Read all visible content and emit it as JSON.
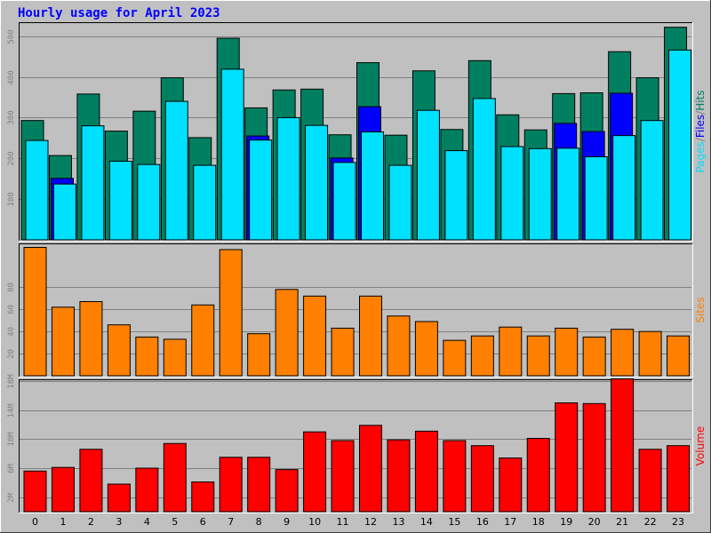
{
  "title": "Hourly usage for April 2023",
  "colors": {
    "background": "#c0c0c0",
    "grid": "#808080",
    "hits": "#008060",
    "files": "#0000ff",
    "pages": "#00e0ff",
    "sites": "#ff8000",
    "volume": "#ff0000",
    "title": "#0000ff"
  },
  "chart_data": [
    {
      "type": "bar",
      "panel": "hits-files-pages",
      "ylabel_parts": [
        {
          "text": "Pages",
          "color_key": "pages"
        },
        {
          "text": "/",
          "color_key": "grid"
        },
        {
          "text": "Files",
          "color_key": "files"
        },
        {
          "text": "/",
          "color_key": "grid"
        },
        {
          "text": "Hits",
          "color_key": "hits"
        }
      ],
      "ylim": [
        0,
        530
      ],
      "yticks": [
        100,
        200,
        300,
        400,
        500
      ],
      "ytick_labels": [
        "100",
        "200",
        "300",
        "400",
        "500"
      ],
      "categories": [
        "0",
        "1",
        "2",
        "3",
        "4",
        "5",
        "6",
        "7",
        "8",
        "9",
        "10",
        "11",
        "12",
        "13",
        "14",
        "15",
        "16",
        "17",
        "18",
        "19",
        "20",
        "21",
        "22",
        "23"
      ],
      "series": [
        {
          "name": "Hits",
          "color_key": "hits",
          "values": [
            293,
            207,
            358,
            267,
            316,
            398,
            251,
            495,
            324,
            368,
            370,
            258,
            435,
            257,
            415,
            271,
            440,
            307,
            270,
            359,
            361,
            462,
            398,
            522
          ]
        },
        {
          "name": "Files",
          "color_key": "files",
          "values": [
            0,
            151,
            0,
            0,
            0,
            0,
            0,
            0,
            255,
            0,
            0,
            201,
            327,
            0,
            0,
            0,
            0,
            0,
            0,
            286,
            266,
            360,
            0,
            0
          ]
        },
        {
          "name": "Pages",
          "color_key": "pages",
          "values": [
            244,
            137,
            280,
            193,
            185,
            340,
            183,
            419,
            245,
            300,
            281,
            190,
            265,
            183,
            318,
            219,
            347,
            229,
            224,
            225,
            204,
            256,
            293,
            466
          ]
        }
      ]
    },
    {
      "type": "bar",
      "panel": "sites",
      "ylabel": "Sites",
      "ylim": [
        0,
        118
      ],
      "yticks": [
        20,
        40,
        60,
        80
      ],
      "ytick_labels": [
        "20",
        "40",
        "60",
        "80"
      ],
      "categories": [
        "0",
        "1",
        "2",
        "3",
        "4",
        "5",
        "6",
        "7",
        "8",
        "9",
        "10",
        "11",
        "12",
        "13",
        "14",
        "15",
        "16",
        "17",
        "18",
        "19",
        "20",
        "21",
        "22",
        "23"
      ],
      "series": [
        {
          "name": "Sites",
          "color_key": "sites",
          "values": [
            116,
            62,
            67,
            46,
            35,
            33,
            64,
            114,
            38,
            78,
            72,
            43,
            72,
            54,
            49,
            32,
            36,
            44,
            36,
            43,
            35,
            42,
            40,
            36
          ]
        }
      ]
    },
    {
      "type": "bar",
      "panel": "volume",
      "ylabel": "Volume",
      "ylim": [
        0,
        18
      ],
      "yticks": [
        2,
        6,
        10,
        14,
        18
      ],
      "ytick_labels": [
        "2M",
        "6M",
        "10M",
        "14M",
        "18M"
      ],
      "categories": [
        "0",
        "1",
        "2",
        "3",
        "4",
        "5",
        "6",
        "7",
        "8",
        "9",
        "10",
        "11",
        "12",
        "13",
        "14",
        "15",
        "16",
        "17",
        "18",
        "19",
        "20",
        "21",
        "22",
        "23"
      ],
      "series": [
        {
          "name": "Volume",
          "color_key": "volume",
          "values": [
            5.6,
            6.1,
            8.6,
            3.8,
            6.0,
            9.4,
            4.1,
            7.5,
            7.5,
            5.8,
            11.0,
            9.8,
            11.9,
            9.9,
            11.1,
            9.8,
            9.1,
            7.4,
            10.1,
            15.0,
            14.9,
            18.3,
            8.6,
            9.1
          ]
        }
      ]
    }
  ]
}
